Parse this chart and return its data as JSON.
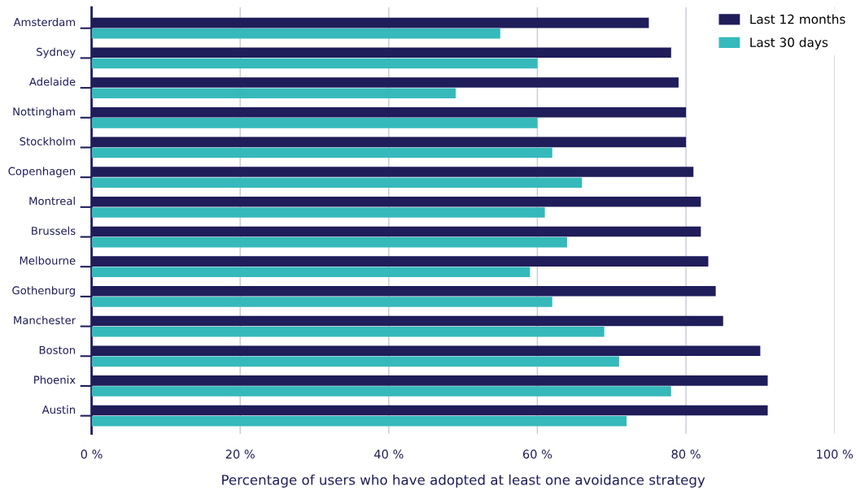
{
  "chart_data": {
    "type": "bar",
    "orientation": "horizontal",
    "xlabel": "Percentage of users who have adopted at least one avoidance strategy",
    "categories": [
      "Amsterdam",
      "Sydney",
      "Adelaide",
      "Nottingham",
      "Stockholm",
      "Copenhagen",
      "Montreal",
      "Brussels",
      "Melbourne",
      "Gothenburg",
      "Manchester",
      "Boston",
      "Phoenix",
      "Austin"
    ],
    "series": [
      {
        "name": "Last 12 months",
        "color": "#1f1d5a",
        "values": [
          75,
          78,
          79,
          80,
          80,
          81,
          82,
          82,
          83,
          84,
          85,
          90,
          91,
          91
        ]
      },
      {
        "name": "Last 30 days",
        "color": "#36b9bb",
        "values": [
          55,
          60,
          49,
          60,
          62,
          66,
          61,
          64,
          59,
          62,
          69,
          71,
          78,
          72
        ]
      }
    ],
    "xlim": [
      0,
      100
    ],
    "xticks": [
      {
        "value": 0,
        "label": "0 %"
      },
      {
        "value": 20,
        "label": "20 %"
      },
      {
        "value": 40,
        "label": "40 %"
      },
      {
        "value": 60,
        "label": "60 %"
      },
      {
        "value": 80,
        "label": "80 %"
      },
      {
        "value": 100,
        "label": "100 %"
      }
    ],
    "grid": "x",
    "legend": "top right"
  }
}
